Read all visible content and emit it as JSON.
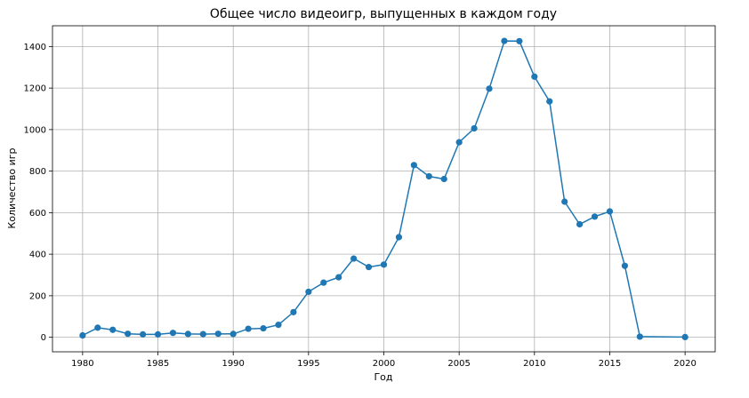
{
  "chart_data": {
    "type": "line",
    "title": "Общее число видеоигр, выпущенных в каждом году",
    "xlabel": "Год",
    "ylabel": "Количество игр",
    "xlim": [
      1978,
      2022
    ],
    "ylim": [
      -70,
      1500
    ],
    "xticks": [
      1980,
      1985,
      1990,
      1995,
      2000,
      2005,
      2010,
      2015,
      2020
    ],
    "yticks": [
      0,
      200,
      400,
      600,
      800,
      1000,
      1200,
      1400
    ],
    "grid": true,
    "color": "#1f77b4",
    "x": [
      1980,
      1981,
      1982,
      1983,
      1984,
      1985,
      1986,
      1987,
      1988,
      1989,
      1990,
      1991,
      1992,
      1993,
      1994,
      1995,
      1996,
      1997,
      1998,
      1999,
      2000,
      2001,
      2002,
      2003,
      2004,
      2005,
      2006,
      2007,
      2008,
      2009,
      2010,
      2011,
      2012,
      2013,
      2014,
      2015,
      2016,
      2017,
      2020
    ],
    "values": [
      9,
      46,
      36,
      17,
      14,
      14,
      21,
      16,
      15,
      17,
      16,
      41,
      43,
      60,
      121,
      219,
      263,
      289,
      379,
      338,
      350,
      482,
      829,
      775,
      762,
      939,
      1006,
      1197,
      1427,
      1426,
      1255,
      1136,
      653,
      544,
      581,
      606,
      344,
      3,
      1
    ]
  }
}
